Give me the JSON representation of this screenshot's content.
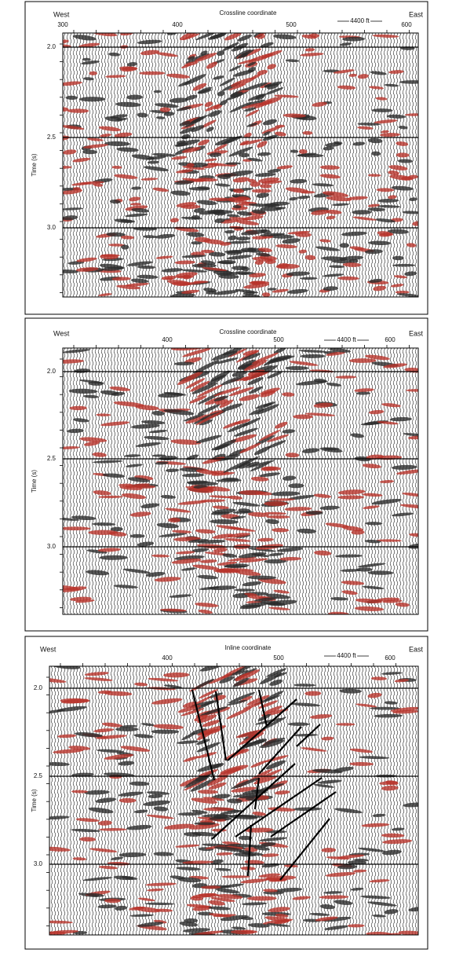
{
  "panels": [
    {
      "west": "West",
      "east": "East",
      "title": "Crossline coordinate",
      "scale": "4400 ft",
      "y_label": "Time (s)",
      "x_ticks": [
        "300",
        "400",
        "500",
        "600"
      ],
      "y_ticks": [
        "2.0",
        "2.5",
        "3.0"
      ]
    },
    {
      "west": "West",
      "east": "East",
      "title": "Crossline coordinate",
      "scale": "4400 ft",
      "y_label": "Time (s)",
      "x_ticks": [
        "400",
        "500",
        "600"
      ],
      "y_ticks": [
        "2.0",
        "2.5",
        "3.0"
      ]
    },
    {
      "west": "West",
      "east": "East",
      "title": "Inline coordinate",
      "scale": "4400 ft",
      "y_label": "Time (s)",
      "x_ticks": [
        "400",
        "500",
        "600"
      ],
      "y_ticks": [
        "2.0",
        "2.5",
        "3.0"
      ]
    }
  ]
}
